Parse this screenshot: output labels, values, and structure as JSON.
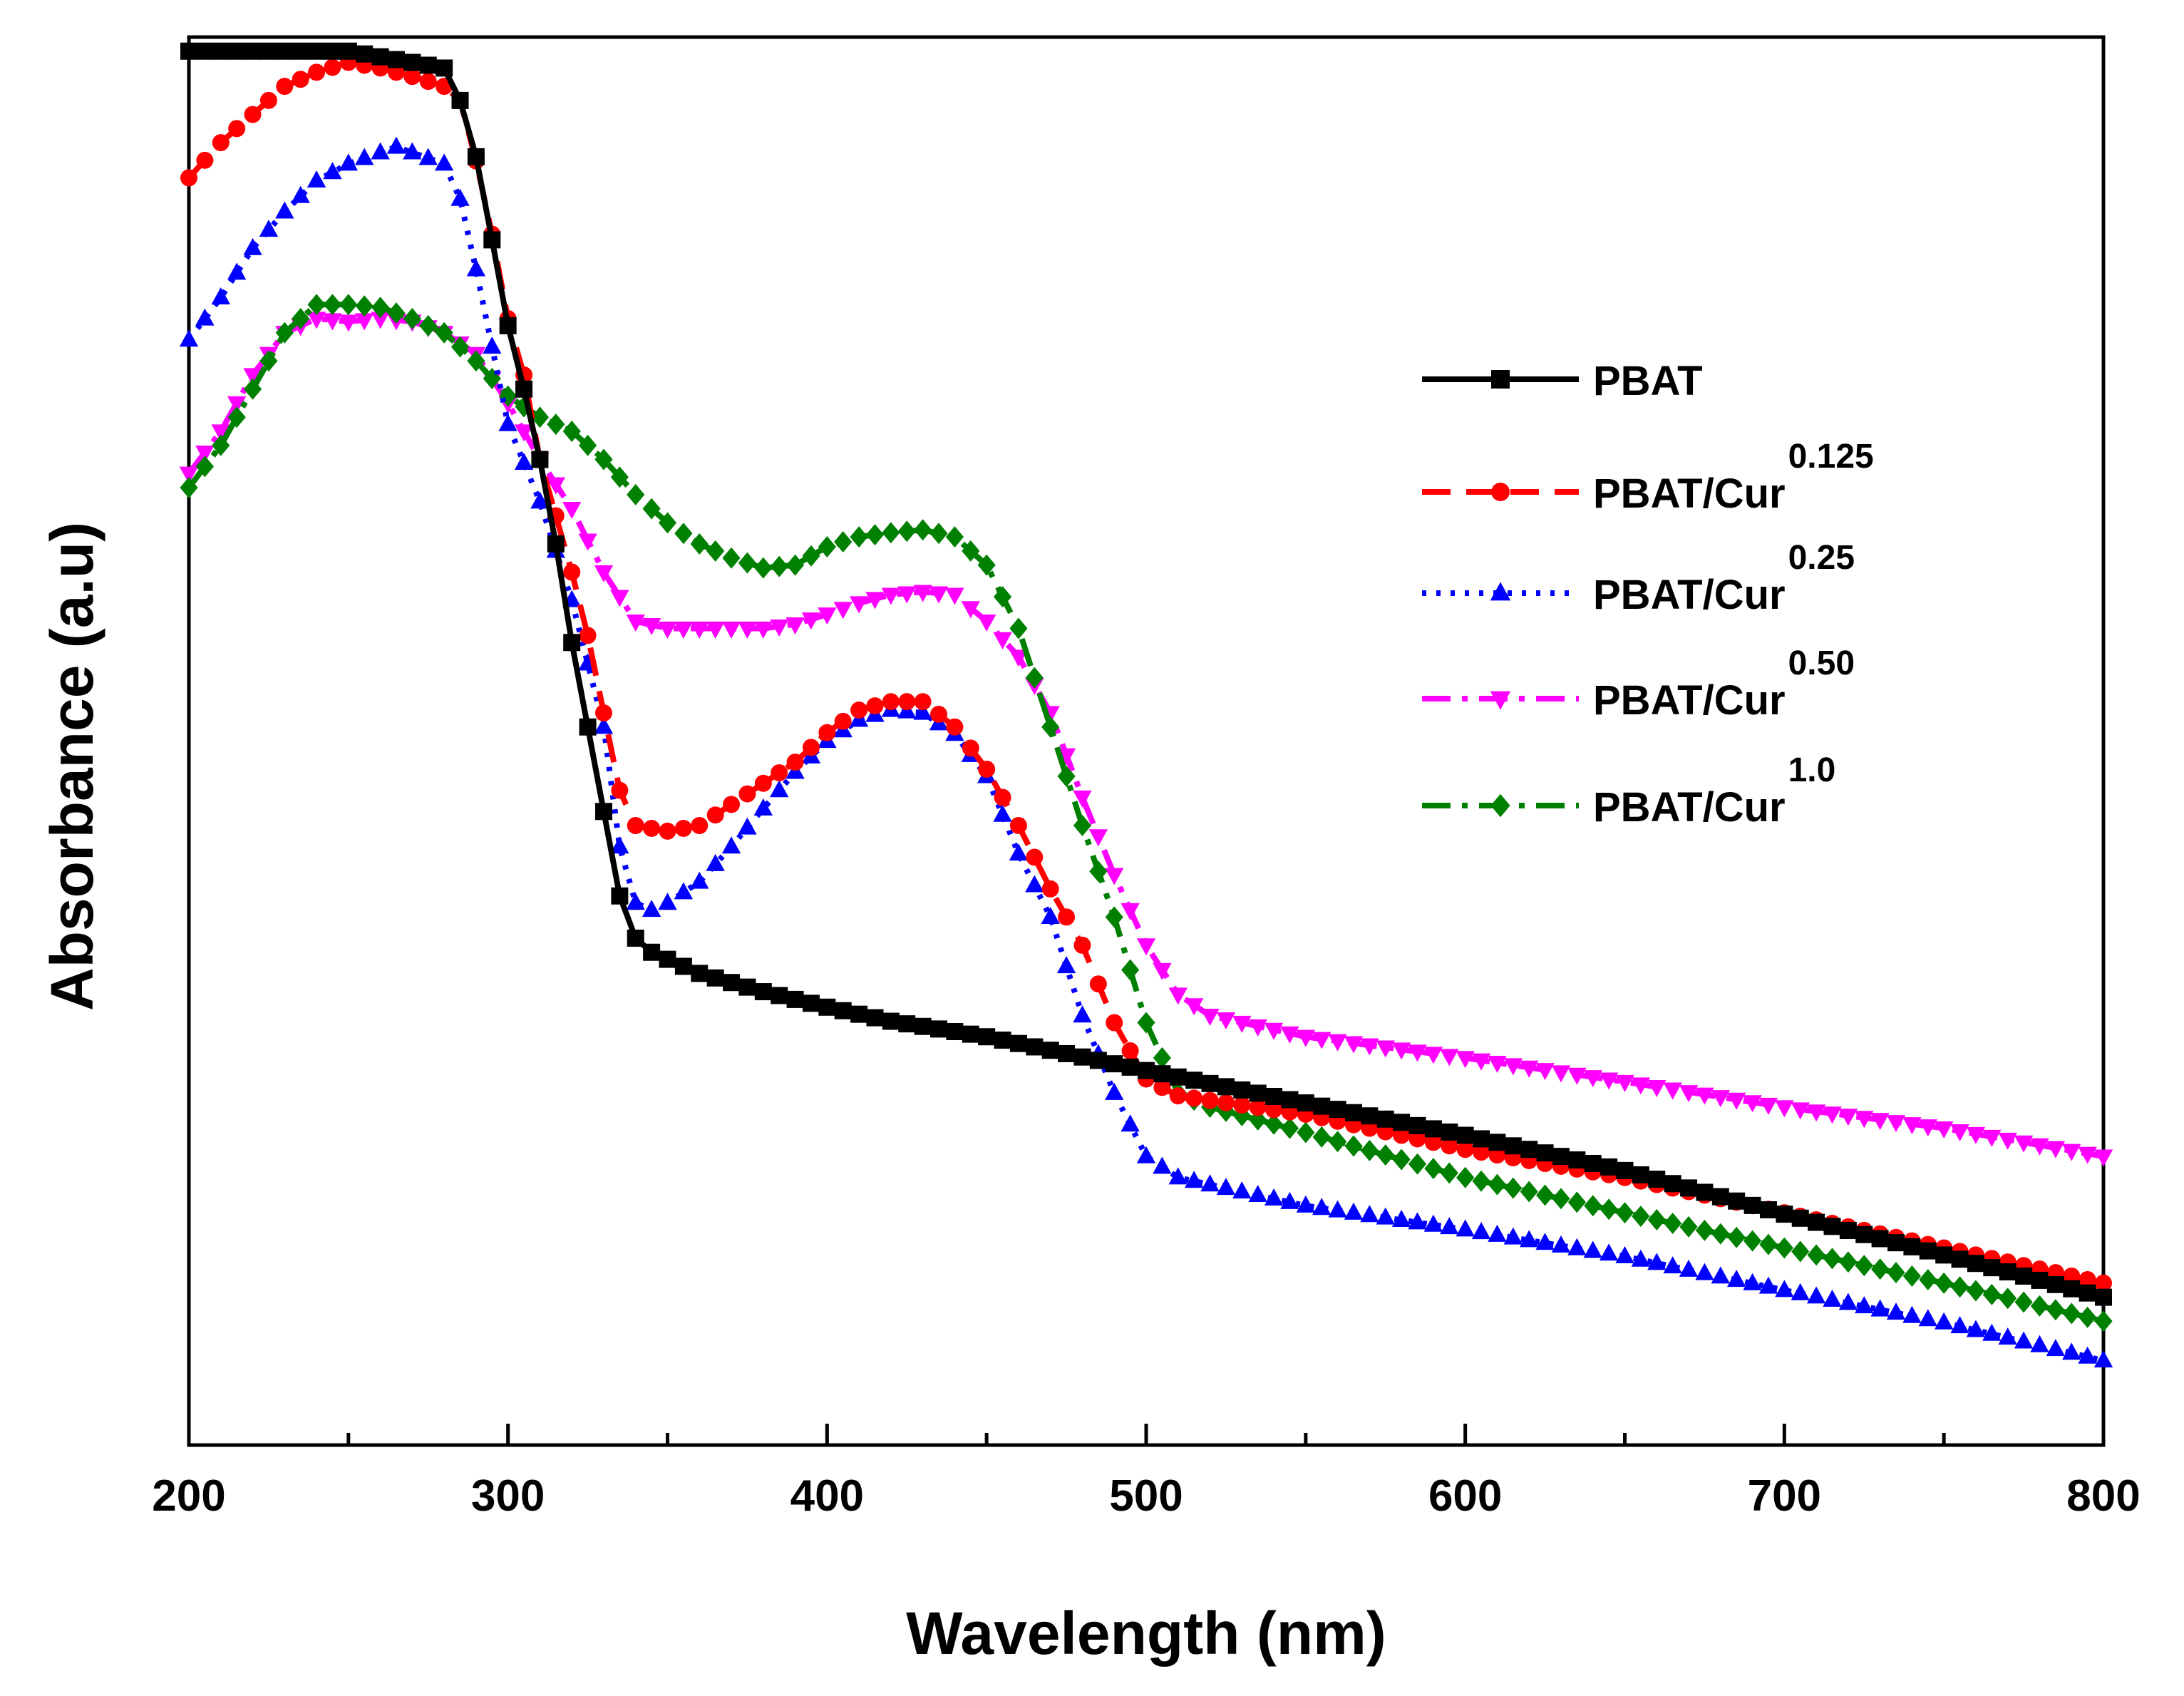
{
  "chart_data": {
    "type": "line",
    "xlabel": "Wavelength (nm)",
    "ylabel": "Absorbance (a.u)",
    "xlim": [
      200,
      800
    ],
    "ylim": [
      0,
      1
    ],
    "x_ticks": [
      "200",
      "300",
      "400",
      "500",
      "600",
      "700",
      "800"
    ],
    "y_ticks_labeled": false,
    "grid": false,
    "legend_position": "right",
    "series": [
      {
        "name": "PBAT",
        "sup": "",
        "color": "#000000",
        "line": "solid",
        "marker": "square",
        "points": [
          [
            200,
            0.99
          ],
          [
            250,
            0.99
          ],
          [
            280,
            0.978
          ],
          [
            285,
            0.955
          ],
          [
            290,
            0.915
          ],
          [
            295,
            0.856
          ],
          [
            300,
            0.795
          ],
          [
            305,
            0.75
          ],
          [
            310,
            0.7
          ],
          [
            315,
            0.64
          ],
          [
            320,
            0.57
          ],
          [
            325,
            0.51
          ],
          [
            330,
            0.45
          ],
          [
            335,
            0.39
          ],
          [
            340,
            0.36
          ],
          [
            345,
            0.35
          ],
          [
            350,
            0.345
          ],
          [
            360,
            0.335
          ],
          [
            380,
            0.322
          ],
          [
            400,
            0.311
          ],
          [
            420,
            0.301
          ],
          [
            450,
            0.29
          ],
          [
            500,
            0.266
          ],
          [
            550,
            0.243
          ],
          [
            600,
            0.22
          ],
          [
            650,
            0.195
          ],
          [
            700,
            0.164
          ],
          [
            750,
            0.135
          ],
          [
            800,
            0.105
          ]
        ]
      },
      {
        "name": "PBAT/Cur",
        "sup": "0.125",
        "color": "#ff0000",
        "line": "dash",
        "marker": "circle",
        "points": [
          [
            200,
            0.9
          ],
          [
            210,
            0.925
          ],
          [
            220,
            0.945
          ],
          [
            230,
            0.965
          ],
          [
            240,
            0.975
          ],
          [
            250,
            0.982
          ],
          [
            260,
            0.978
          ],
          [
            270,
            0.972
          ],
          [
            280,
            0.965
          ],
          [
            285,
            0.955
          ],
          [
            290,
            0.912
          ],
          [
            295,
            0.86
          ],
          [
            300,
            0.8
          ],
          [
            305,
            0.76
          ],
          [
            310,
            0.7
          ],
          [
            315,
            0.66
          ],
          [
            320,
            0.62
          ],
          [
            325,
            0.575
          ],
          [
            330,
            0.52
          ],
          [
            335,
            0.465
          ],
          [
            340,
            0.44
          ],
          [
            350,
            0.436
          ],
          [
            360,
            0.44
          ],
          [
            370,
            0.455
          ],
          [
            380,
            0.47
          ],
          [
            390,
            0.485
          ],
          [
            400,
            0.506
          ],
          [
            410,
            0.522
          ],
          [
            420,
            0.528
          ],
          [
            430,
            0.528
          ],
          [
            440,
            0.51
          ],
          [
            450,
            0.48
          ],
          [
            460,
            0.44
          ],
          [
            470,
            0.395
          ],
          [
            480,
            0.355
          ],
          [
            490,
            0.3
          ],
          [
            500,
            0.26
          ],
          [
            510,
            0.248
          ],
          [
            550,
            0.235
          ],
          [
            600,
            0.21
          ],
          [
            650,
            0.19
          ],
          [
            700,
            0.165
          ],
          [
            750,
            0.14
          ],
          [
            800,
            0.115
          ]
        ]
      },
      {
        "name": "PBAT/Cur",
        "sup": "0.25",
        "color": "#0000ff",
        "line": "dot",
        "marker": "triangle-up",
        "points": [
          [
            200,
            0.785
          ],
          [
            210,
            0.815
          ],
          [
            220,
            0.85
          ],
          [
            230,
            0.876
          ],
          [
            240,
            0.898
          ],
          [
            250,
            0.91
          ],
          [
            260,
            0.918
          ],
          [
            265,
            0.922
          ],
          [
            270,
            0.918
          ],
          [
            280,
            0.91
          ],
          [
            285,
            0.885
          ],
          [
            290,
            0.835
          ],
          [
            295,
            0.78
          ],
          [
            300,
            0.725
          ],
          [
            310,
            0.67
          ],
          [
            320,
            0.6
          ],
          [
            330,
            0.51
          ],
          [
            335,
            0.425
          ],
          [
            340,
            0.385
          ],
          [
            345,
            0.38
          ],
          [
            350,
            0.385
          ],
          [
            360,
            0.4
          ],
          [
            370,
            0.425
          ],
          [
            380,
            0.452
          ],
          [
            390,
            0.478
          ],
          [
            400,
            0.5
          ],
          [
            410,
            0.515
          ],
          [
            420,
            0.522
          ],
          [
            430,
            0.52
          ],
          [
            440,
            0.505
          ],
          [
            450,
            0.475
          ],
          [
            460,
            0.42
          ],
          [
            470,
            0.375
          ],
          [
            480,
            0.305
          ],
          [
            490,
            0.25
          ],
          [
            500,
            0.205
          ],
          [
            510,
            0.19
          ],
          [
            550,
            0.17
          ],
          [
            600,
            0.153
          ],
          [
            650,
            0.134
          ],
          [
            700,
            0.11
          ],
          [
            750,
            0.087
          ],
          [
            800,
            0.06
          ]
        ]
      },
      {
        "name": "PBAT/Cur",
        "sup": "0.50",
        "color": "#ff00ff",
        "line": "dashdot",
        "marker": "triangle-down",
        "points": [
          [
            200,
            0.69
          ],
          [
            210,
            0.72
          ],
          [
            220,
            0.76
          ],
          [
            230,
            0.79
          ],
          [
            240,
            0.8
          ],
          [
            250,
            0.798
          ],
          [
            260,
            0.8
          ],
          [
            270,
            0.798
          ],
          [
            280,
            0.79
          ],
          [
            290,
            0.775
          ],
          [
            300,
            0.74
          ],
          [
            310,
            0.7
          ],
          [
            320,
            0.665
          ],
          [
            330,
            0.62
          ],
          [
            340,
            0.585
          ],
          [
            350,
            0.58
          ],
          [
            360,
            0.58
          ],
          [
            380,
            0.58
          ],
          [
            390,
            0.583
          ],
          [
            400,
            0.59
          ],
          [
            410,
            0.598
          ],
          [
            420,
            0.604
          ],
          [
            430,
            0.606
          ],
          [
            440,
            0.604
          ],
          [
            450,
            0.585
          ],
          [
            460,
            0.56
          ],
          [
            470,
            0.52
          ],
          [
            480,
            0.46
          ],
          [
            490,
            0.405
          ],
          [
            500,
            0.355
          ],
          [
            510,
            0.32
          ],
          [
            520,
            0.305
          ],
          [
            550,
            0.29
          ],
          [
            600,
            0.275
          ],
          [
            650,
            0.258
          ],
          [
            700,
            0.24
          ],
          [
            750,
            0.225
          ],
          [
            800,
            0.205
          ]
        ]
      },
      {
        "name": "PBAT/Cur",
        "sup": "1.0",
        "color": "#008000",
        "line": "dashdot",
        "marker": "diamond",
        "points": [
          [
            200,
            0.68
          ],
          [
            210,
            0.71
          ],
          [
            220,
            0.75
          ],
          [
            230,
            0.79
          ],
          [
            240,
            0.81
          ],
          [
            250,
            0.81
          ],
          [
            260,
            0.808
          ],
          [
            270,
            0.8
          ],
          [
            280,
            0.79
          ],
          [
            290,
            0.77
          ],
          [
            300,
            0.745
          ],
          [
            310,
            0.73
          ],
          [
            320,
            0.72
          ],
          [
            330,
            0.7
          ],
          [
            340,
            0.675
          ],
          [
            350,
            0.655
          ],
          [
            360,
            0.64
          ],
          [
            370,
            0.63
          ],
          [
            380,
            0.623
          ],
          [
            390,
            0.625
          ],
          [
            400,
            0.638
          ],
          [
            410,
            0.645
          ],
          [
            420,
            0.648
          ],
          [
            430,
            0.65
          ],
          [
            440,
            0.645
          ],
          [
            450,
            0.625
          ],
          [
            460,
            0.58
          ],
          [
            470,
            0.51
          ],
          [
            480,
            0.44
          ],
          [
            490,
            0.375
          ],
          [
            500,
            0.3
          ],
          [
            510,
            0.25
          ],
          [
            520,
            0.24
          ],
          [
            550,
            0.222
          ],
          [
            600,
            0.19
          ],
          [
            650,
            0.165
          ],
          [
            700,
            0.14
          ],
          [
            750,
            0.115
          ],
          [
            800,
            0.088
          ]
        ]
      }
    ]
  }
}
